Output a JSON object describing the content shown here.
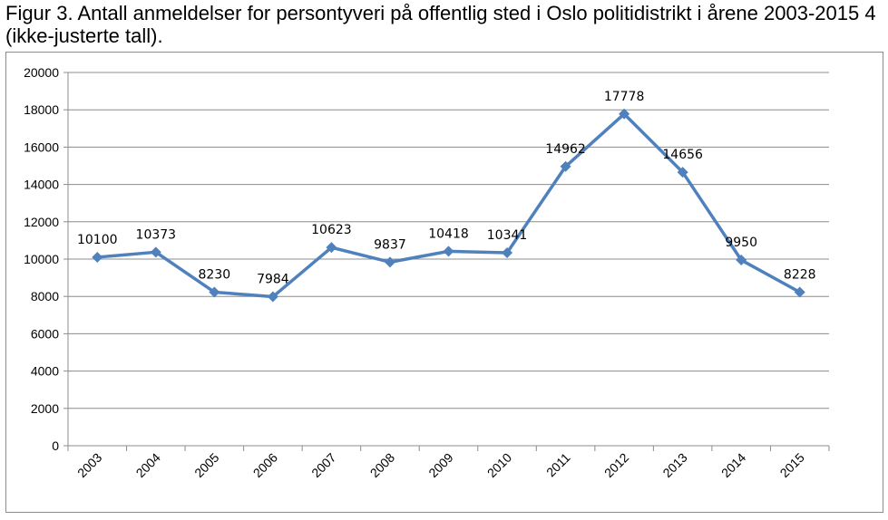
{
  "caption": "Figur 3. Antall anmeldelser for persontyveri på offentlig sted i Oslo politidistrikt i årene 2003-2015 4 (ikke-justerte tall).",
  "chart_data": {
    "type": "line",
    "categories": [
      "2003",
      "2004",
      "2005",
      "2006",
      "2007",
      "2008",
      "2009",
      "2010",
      "2011",
      "2012",
      "2013",
      "2014",
      "2015"
    ],
    "series": [
      {
        "values": [
          10100,
          10373,
          8230,
          7984,
          10623,
          9837,
          10418,
          10341,
          14962,
          17778,
          14656,
          9950,
          8228
        ]
      }
    ],
    "data_labels": [
      "10100",
      "10373",
      "8230",
      "7984",
      "10623",
      "9837",
      "10418",
      "10341",
      "14962",
      "17778",
      "14656",
      "9950",
      "8228"
    ],
    "yticks": [
      0,
      2000,
      4000,
      6000,
      8000,
      10000,
      12000,
      14000,
      16000,
      18000,
      20000
    ],
    "ylim": [
      0,
      20000
    ],
    "grid": true,
    "legend": "none",
    "colors": {
      "line": "#4f81bd",
      "grid": "#8c8c8c",
      "axis": "#8c8c8c"
    }
  }
}
